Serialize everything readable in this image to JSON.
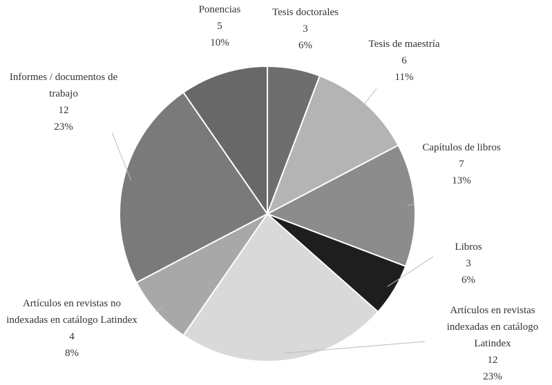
{
  "chart_data": {
    "type": "pie",
    "categories": [
      "Tesis doctorales",
      "Tesis de maestría",
      "Capítulos de libros",
      "Libros",
      "Artículos en revistas indexadas en catálogo Latindex",
      "Artículos en revistas no indexadas en catálogo Latindex",
      "Informes / documentos de trabajo",
      "Ponencias"
    ],
    "values": [
      3,
      6,
      7,
      3,
      12,
      4,
      12,
      5
    ],
    "value_labels": [
      "6%",
      "11%",
      "13%",
      "6%",
      "23%",
      "8%",
      "23%",
      "10%"
    ],
    "colors": [
      "#6e6e6e",
      "#b4b4b4",
      "#8c8c8c",
      "#1e1e1e",
      "#d9d9d9",
      "#a8a8a8",
      "#7a7a7a",
      "#686868"
    ]
  }
}
